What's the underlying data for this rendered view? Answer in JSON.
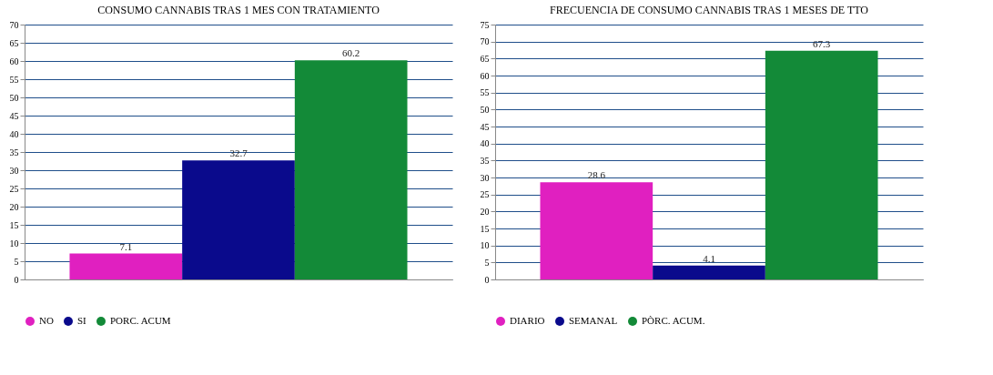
{
  "chart_data": [
    {
      "type": "bar",
      "title": "CONSUMO CANNABIS TRAS 1 MES CON TRATAMIENTO",
      "categories": [
        null
      ],
      "series": [
        {
          "name": "NO",
          "color": "#e020c0",
          "values": [
            7.1
          ]
        },
        {
          "name": "SI",
          "color": "#0a0a8c",
          "values": [
            32.7
          ]
        },
        {
          "name": "PORC. ACUM",
          "color": "#138a38",
          "values": [
            60.2
          ]
        }
      ],
      "ylim": [
        0,
        70
      ],
      "yticks": [
        0,
        5,
        10,
        15,
        20,
        25,
        30,
        35,
        40,
        45,
        50,
        55,
        60,
        65,
        70
      ],
      "grid": "y",
      "legend": "bottom",
      "data_labels": true
    },
    {
      "type": "bar",
      "title": "FRECUENCIA DE CONSUMO CANNABIS TRAS 1 MESES DE TTO",
      "categories": [
        null
      ],
      "series": [
        {
          "name": "DIARIO",
          "color": "#e020c0",
          "values": [
            28.6
          ]
        },
        {
          "name": "SEMANAL",
          "color": "#0a0a8c",
          "values": [
            4.1
          ]
        },
        {
          "name": "PÒRC. ACUM.",
          "color": "#138a38",
          "values": [
            67.3
          ]
        }
      ],
      "ylim": [
        0,
        75
      ],
      "yticks": [
        0,
        5,
        10,
        15,
        20,
        25,
        30,
        35,
        40,
        45,
        50,
        55,
        60,
        65,
        70,
        75
      ],
      "grid": "y",
      "legend": "bottom",
      "data_labels": true
    }
  ]
}
